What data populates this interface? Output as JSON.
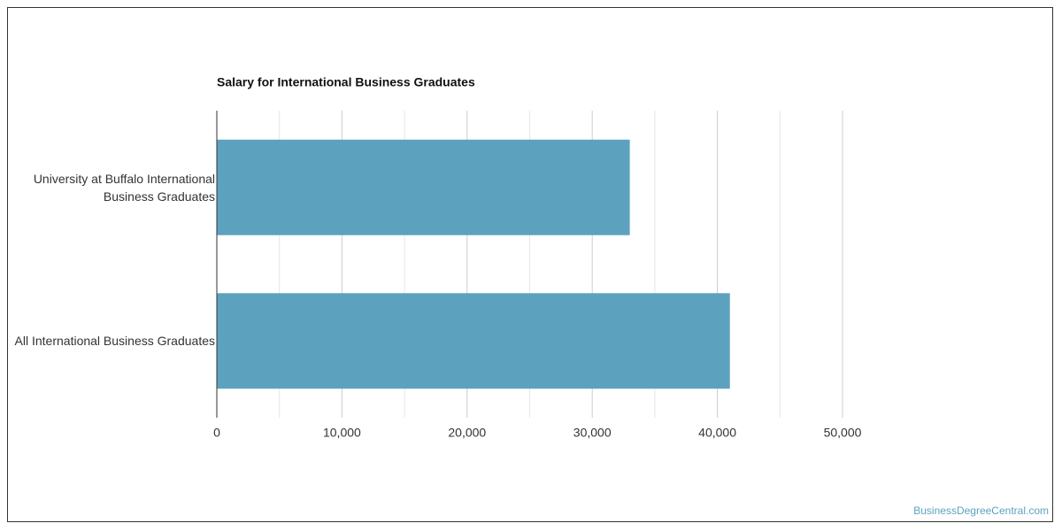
{
  "chart_data": {
    "type": "hbar",
    "title": "Salary for International Business Graduates",
    "categories": [
      "University at Buffalo International Business Graduates",
      "All International Business Graduates"
    ],
    "values": [
      33000,
      41000
    ],
    "color": "#5ca2bf",
    "xlim": [
      0,
      50000
    ],
    "xticks": [
      0,
      {
        "value": 10000,
        "label": "10,000"
      },
      {
        "value": 20000,
        "label": "20,000"
      },
      {
        "value": 30000,
        "label": "30,000"
      },
      {
        "value": 40000,
        "label": "40,000"
      },
      {
        "value": 50000,
        "label": "50,000"
      }
    ],
    "xminorticks": [
      5000,
      15000,
      25000,
      35000,
      45000
    ],
    "grid": true,
    "watermark": "BusinessDegreeCentral.com"
  }
}
